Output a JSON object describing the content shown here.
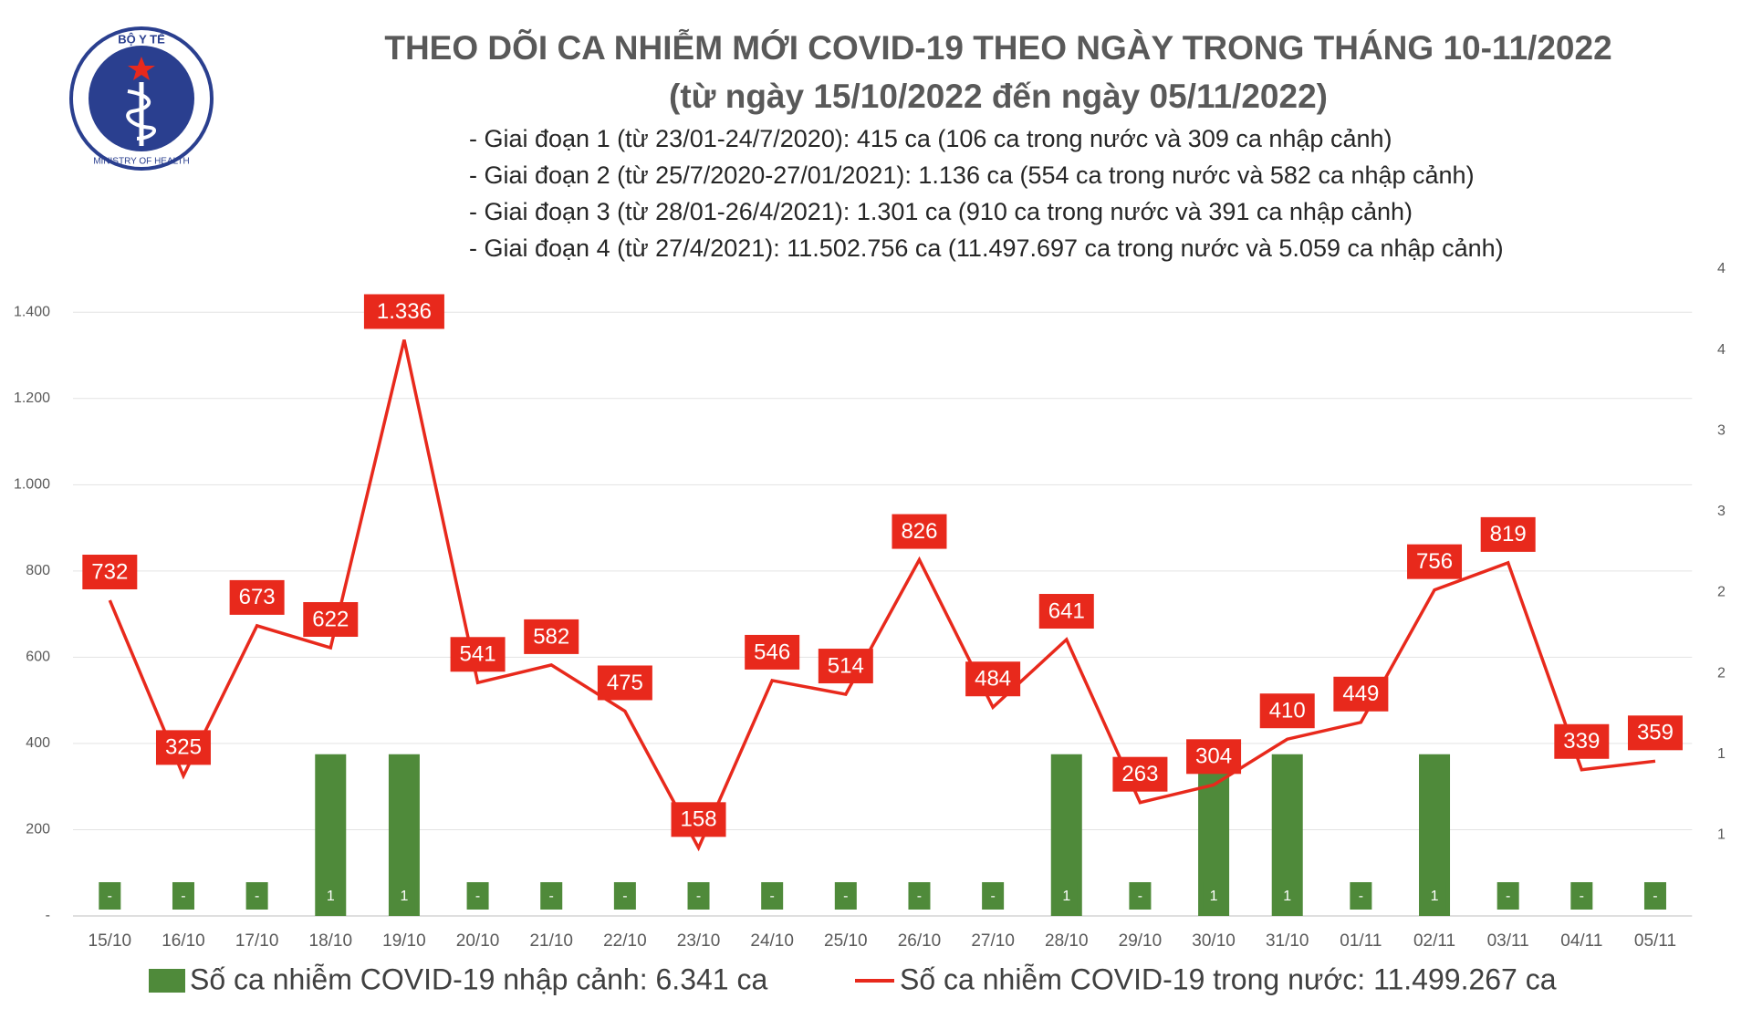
{
  "logo": {
    "top": "BỘ Y TẾ",
    "bottom": "MINISTRY OF HEALTH"
  },
  "chart_data": {
    "type": "bar-line",
    "title": "THEO DÕI CA NHIỄM MỚI COVID-19 THEO NGÀY TRONG THÁNG 10-11/2022",
    "subtitle": "(từ ngày 15/10/2022 đến ngày 05/11/2022)",
    "annotations": [
      "- Giai đoạn 1 (từ 23/01-24/7/2020): 415 ca (106 ca trong nước và 309 ca nhập cảnh)",
      "- Giai đoạn 2 (từ 25/7/2020-27/01/2021): 1.136 ca (554 ca trong nước và 582 ca nhập cảnh)",
      "- Giai đoạn 3 (từ 28/01-26/4/2021): 1.301 ca (910 ca trong nước và 391 ca nhập cảnh)",
      "- Giai đoạn 4 (từ 27/4/2021): 11.502.756 ca (11.497.697 ca trong nước và 5.059 ca nhập cảnh)"
    ],
    "categories": [
      "15/10",
      "16/10",
      "17/10",
      "18/10",
      "19/10",
      "20/10",
      "21/10",
      "22/10",
      "23/10",
      "24/10",
      "25/10",
      "26/10",
      "27/10",
      "28/10",
      "29/10",
      "30/10",
      "31/10",
      "01/11",
      "02/11",
      "03/11",
      "04/11",
      "05/11"
    ],
    "series": [
      {
        "name": "Số ca nhiễm COVID-19 nhập cảnh: 6.341 ca",
        "type": "bar",
        "axis": "y2",
        "color": "#4f8a3a",
        "values": [
          0,
          0,
          0,
          1,
          1,
          0,
          0,
          0,
          0,
          0,
          0,
          0,
          0,
          1,
          0,
          1,
          1,
          0,
          1,
          0,
          0,
          0
        ],
        "value_labels": [
          "-",
          "-",
          "-",
          "1",
          "1",
          "-",
          "-",
          "-",
          "-",
          "-",
          "-",
          "-",
          "-",
          "1",
          "-",
          "1",
          "1",
          "-",
          "1",
          "-",
          "-",
          "-"
        ]
      },
      {
        "name": "Số ca nhiễm COVID-19 trong nước: 11.499.267 ca",
        "type": "line",
        "color": "#e8291c",
        "values": [
          732,
          325,
          673,
          622,
          1336,
          541,
          582,
          475,
          158,
          546,
          514,
          826,
          484,
          641,
          263,
          304,
          410,
          449,
          756,
          819,
          339,
          359
        ],
        "value_labels": [
          "732",
          "325",
          "673",
          "622",
          "1.336",
          "541",
          "582",
          "475",
          "158",
          "546",
          "514",
          "826",
          "484",
          "641",
          "263",
          "304",
          "410",
          "449",
          "756",
          "819",
          "339",
          "359"
        ]
      }
    ],
    "ylim": [
      0,
      1500
    ],
    "yticks": [
      {
        "value": 0,
        "label": "-"
      },
      200,
      400,
      600,
      800,
      {
        "value": 1000,
        "label": "1.000"
      },
      {
        "value": 1200,
        "label": "1.200"
      },
      {
        "value": 1400,
        "label": "1.400"
      }
    ],
    "y2lim": [
      0,
      4
    ],
    "y2ticks": [
      {
        "value": 0.5,
        "label": "1"
      },
      1,
      {
        "value": 1.5,
        "label": "2"
      },
      2,
      {
        "value": 2.5,
        "label": "3"
      },
      3,
      {
        "value": 3.5,
        "label": "4"
      },
      4
    ],
    "grid": true,
    "legend": "bottom"
  }
}
